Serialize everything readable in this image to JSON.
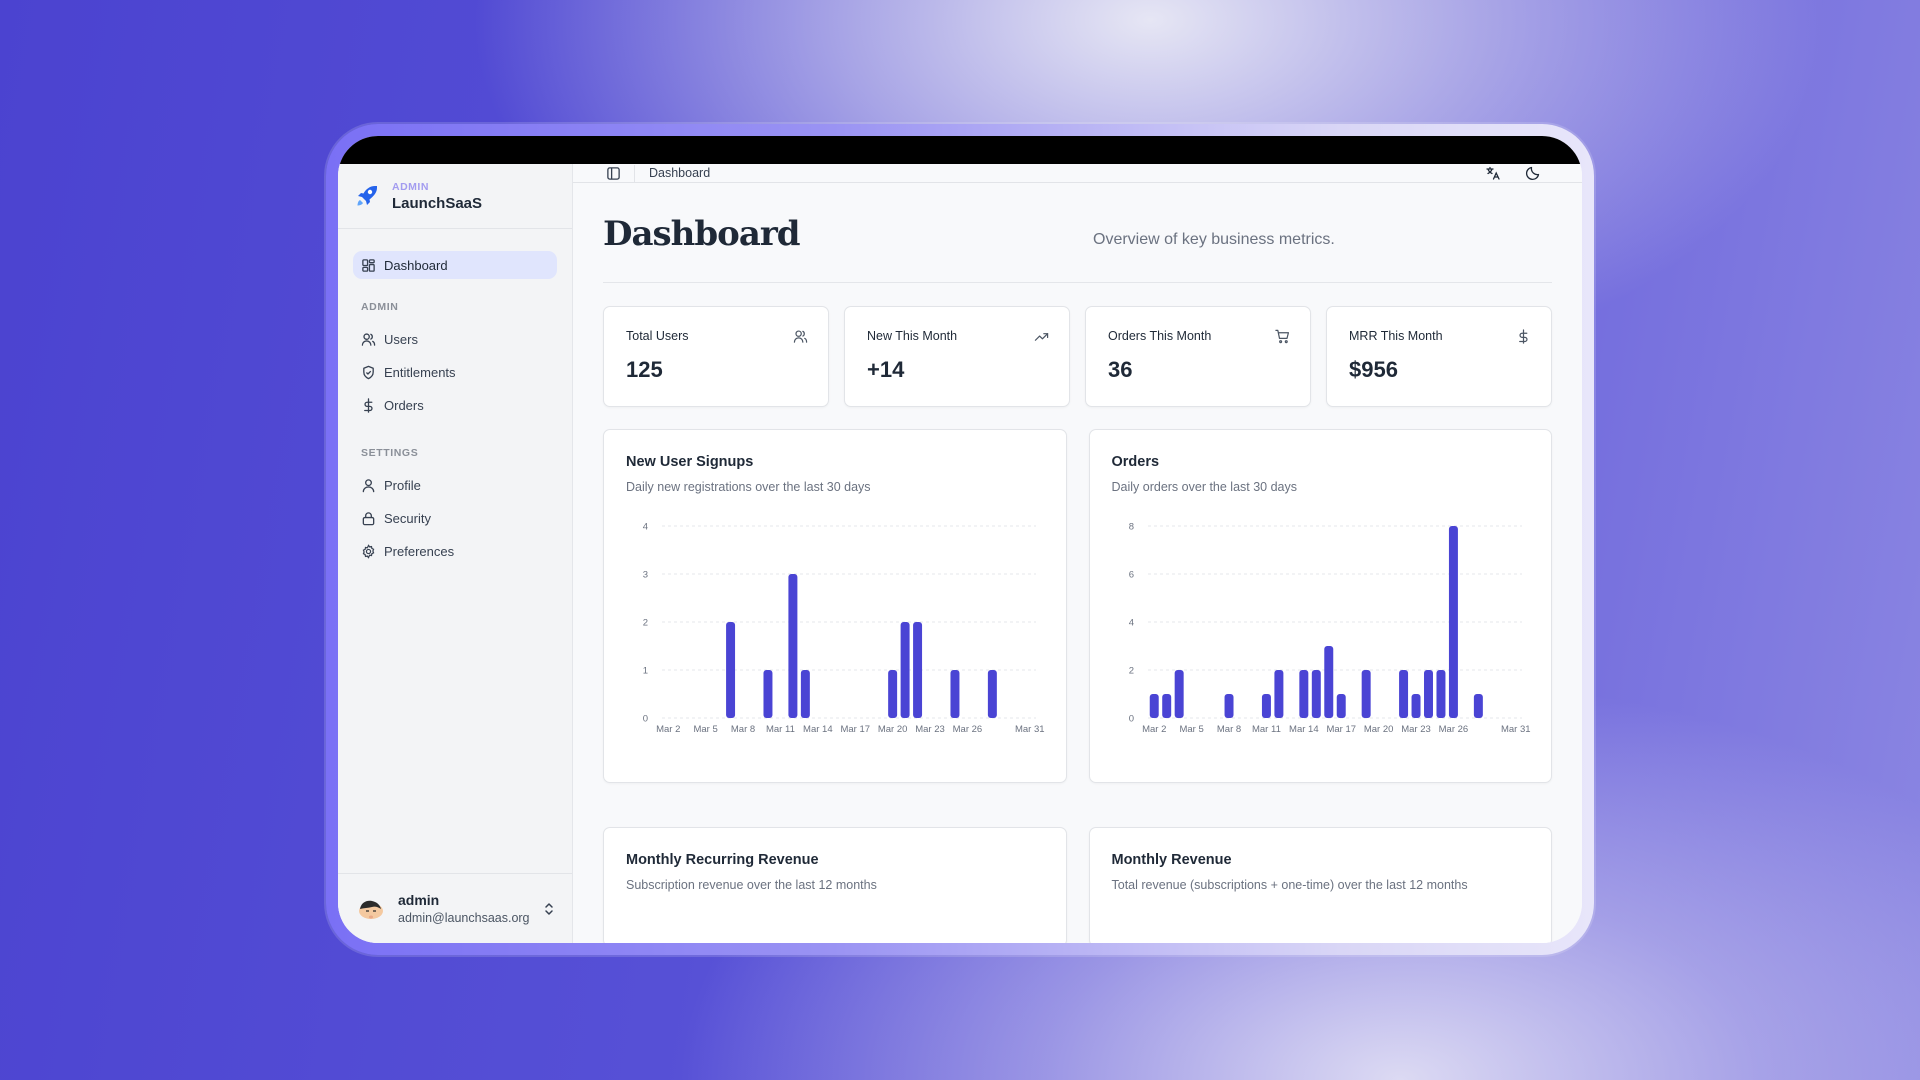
{
  "sidebar": {
    "brand": {
      "sub": "ADMIN",
      "title": "LaunchSaaS",
      "icon": "rocket-icon"
    },
    "items": [
      {
        "label": "Dashboard",
        "icon": "dashboard-grid-icon",
        "active": true
      }
    ],
    "sections": [
      {
        "title": "ADMIN",
        "items": [
          {
            "label": "Users",
            "icon": "users-icon"
          },
          {
            "label": "Entitlements",
            "icon": "shield-check-icon"
          },
          {
            "label": "Orders",
            "icon": "dollar-icon"
          }
        ]
      },
      {
        "title": "SETTINGS",
        "items": [
          {
            "label": "Profile",
            "icon": "user-icon"
          },
          {
            "label": "Security",
            "icon": "lock-icon"
          },
          {
            "label": "Preferences",
            "icon": "gear-icon"
          }
        ]
      }
    ],
    "user": {
      "name": "admin",
      "email": "admin@launchsaas.org"
    }
  },
  "header": {
    "breadcrumb": "Dashboard",
    "icons": [
      "sidebar-toggle-icon",
      "translate-icon",
      "moon-icon"
    ]
  },
  "page": {
    "title": "Dashboard",
    "subtitle": "Overview of key business metrics."
  },
  "stats": [
    {
      "label": "Total Users",
      "value": "125",
      "icon": "users-icon"
    },
    {
      "label": "New This Month",
      "value": "+14",
      "icon": "trending-up-icon"
    },
    {
      "label": "Orders This Month",
      "value": "36",
      "icon": "cart-icon"
    },
    {
      "label": "MRR This Month",
      "value": "$956",
      "icon": "dollar-icon"
    }
  ],
  "cards": [
    {
      "title": "New User Signups",
      "subtitle": "Daily new registrations over the last 30 days"
    },
    {
      "title": "Orders",
      "subtitle": "Daily orders over the last 30 days"
    },
    {
      "title": "Monthly Recurring Revenue",
      "subtitle": "Subscription revenue over the last 12 months"
    },
    {
      "title": "Monthly Revenue",
      "subtitle": "Total revenue (subscriptions + one-time) over the last 12 months"
    }
  ],
  "colors": {
    "accent": "#4f46e5",
    "bar": "#4a44d4",
    "sidebar_active_bg": "#e0e5fd",
    "brand_sub": "#a39cf0"
  },
  "chart_data": [
    {
      "type": "bar",
      "title": "New User Signups",
      "subtitle": "Daily new registrations over the last 30 days",
      "x": [
        "Mar 2",
        "Mar 3",
        "Mar 4",
        "Mar 5",
        "Mar 6",
        "Mar 7",
        "Mar 8",
        "Mar 9",
        "Mar 10",
        "Mar 11",
        "Mar 12",
        "Mar 13",
        "Mar 14",
        "Mar 15",
        "Mar 16",
        "Mar 17",
        "Mar 18",
        "Mar 19",
        "Mar 20",
        "Mar 21",
        "Mar 22",
        "Mar 23",
        "Mar 24",
        "Mar 25",
        "Mar 26",
        "Mar 27",
        "Mar 28",
        "Mar 29",
        "Mar 30",
        "Mar 31"
      ],
      "values": [
        0,
        0,
        0,
        0,
        0,
        2,
        0,
        0,
        1,
        0,
        3,
        1,
        0,
        0,
        0,
        0,
        0,
        0,
        1,
        2,
        2,
        0,
        0,
        1,
        0,
        0,
        1,
        0,
        0,
        0
      ],
      "xticks": [
        "Mar 2",
        "Mar 5",
        "Mar 8",
        "Mar 11",
        "Mar 14",
        "Mar 17",
        "Mar 20",
        "Mar 23",
        "Mar 26",
        "Mar 31"
      ],
      "yticks": [
        0,
        1,
        2,
        3,
        4
      ],
      "ylim": [
        0,
        4
      ],
      "xlabel": "",
      "ylabel": "",
      "grid": true
    },
    {
      "type": "bar",
      "title": "Orders",
      "subtitle": "Daily orders over the last 30 days",
      "x": [
        "Mar 2",
        "Mar 3",
        "Mar 4",
        "Mar 5",
        "Mar 6",
        "Mar 7",
        "Mar 8",
        "Mar 9",
        "Mar 10",
        "Mar 11",
        "Mar 12",
        "Mar 13",
        "Mar 14",
        "Mar 15",
        "Mar 16",
        "Mar 17",
        "Mar 18",
        "Mar 19",
        "Mar 20",
        "Mar 21",
        "Mar 22",
        "Mar 23",
        "Mar 24",
        "Mar 25",
        "Mar 26",
        "Mar 27",
        "Mar 28",
        "Mar 29",
        "Mar 30",
        "Mar 31"
      ],
      "values": [
        1,
        1,
        2,
        0,
        0,
        0,
        1,
        0,
        0,
        1,
        2,
        0,
        2,
        2,
        3,
        1,
        0,
        2,
        0,
        0,
        2,
        1,
        2,
        2,
        8,
        0,
        1,
        0,
        0,
        0
      ],
      "xticks": [
        "Mar 2",
        "Mar 5",
        "Mar 8",
        "Mar 11",
        "Mar 14",
        "Mar 17",
        "Mar 20",
        "Mar 23",
        "Mar 26",
        "Mar 31"
      ],
      "yticks": [
        0,
        2,
        4,
        6,
        8
      ],
      "ylim": [
        0,
        8
      ],
      "xlabel": "",
      "ylabel": "",
      "grid": true
    }
  ]
}
